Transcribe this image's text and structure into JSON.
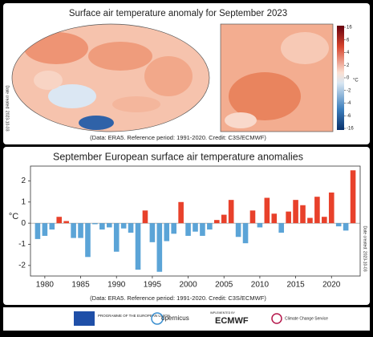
{
  "maps": {
    "title": "Surface air temperature anomaly for September 2023",
    "colorbar_ticks": [
      16,
      6,
      4,
      2,
      0,
      -2,
      -4,
      -6,
      -16
    ],
    "unit": "°C",
    "date": "Date created: 2023-10-03",
    "credit": "(Data: ERA5. Reference period: 1991-2020. Credit: C3S/ECMWF)"
  },
  "chart_data": {
    "type": "bar",
    "title": "September European surface air temperature anomalies",
    "ylabel": "°C",
    "x": [
      1979,
      1980,
      1981,
      1982,
      1983,
      1984,
      1985,
      1986,
      1987,
      1988,
      1989,
      1990,
      1991,
      1992,
      1993,
      1994,
      1995,
      1996,
      1997,
      1998,
      1999,
      2000,
      2001,
      2002,
      2003,
      2004,
      2005,
      2006,
      2007,
      2008,
      2009,
      2010,
      2011,
      2012,
      2013,
      2014,
      2015,
      2016,
      2017,
      2018,
      2019,
      2020,
      2021,
      2022,
      2023
    ],
    "values": [
      -0.75,
      -0.6,
      -0.3,
      0.3,
      0.1,
      -0.7,
      -0.7,
      -1.6,
      -0.05,
      -0.3,
      -0.2,
      -1.35,
      -0.25,
      -0.45,
      -2.2,
      0.6,
      -0.9,
      -2.3,
      -0.85,
      -0.5,
      1.0,
      -0.6,
      -0.4,
      -0.6,
      -0.3,
      0.15,
      0.4,
      1.1,
      -0.65,
      -0.95,
      0.6,
      -0.2,
      1.2,
      0.45,
      -0.45,
      0.55,
      1.1,
      0.85,
      0.25,
      1.25,
      0.3,
      1.45,
      -0.15,
      -0.35,
      2.5
    ],
    "positive_color": "#e8412b",
    "negative_color": "#5ba4d7",
    "xlim": [
      1978,
      2024
    ],
    "xticks": [
      1980,
      1985,
      1990,
      1995,
      2000,
      2005,
      2010,
      2015,
      2020
    ],
    "ylim": [
      -2.5,
      2.7
    ],
    "yticks": [
      -2,
      -1,
      0,
      1,
      2
    ],
    "date": "Date created: 2023-10-03",
    "credit": "(Data: ERA5. Reference period: 1991-2020. Credit: C3S/ECMWF)"
  },
  "footer": {
    "eu": "PROGRAMME OF THE EUROPEAN UNION",
    "copernicus": "opernicus",
    "implemented": "IMPLEMENTED BY",
    "ecmwf": "ECMWF",
    "c3s": "Climate Change Service"
  }
}
